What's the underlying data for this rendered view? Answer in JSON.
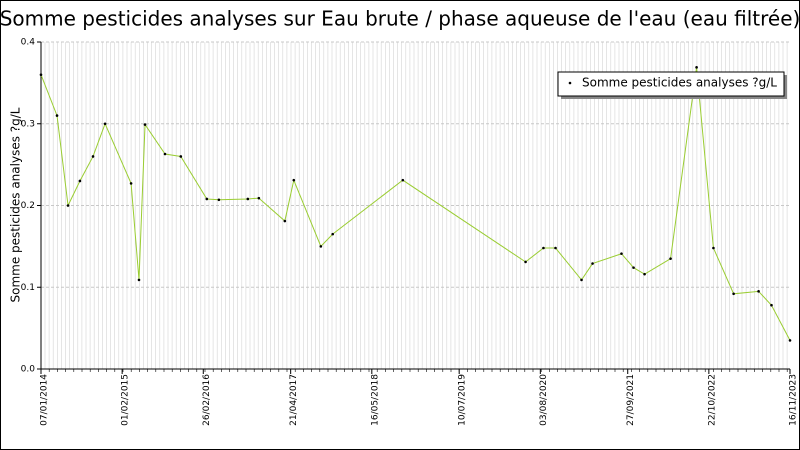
{
  "chart_data": {
    "type": "line",
    "title": "Somme pesticides analyses sur Eau brute / phase aqueuse de l'eau (eau filtrée)",
    "y_label": "Somme pesticides analyses ?g/L",
    "x": [
      "2014-01-07",
      "2014-03-25",
      "2014-05-17",
      "2014-07-13",
      "2014-09-14",
      "2014-11-11",
      "2015-03-16",
      "2015-04-23",
      "2015-05-22",
      "2015-08-26",
      "2015-11-10",
      "2016-03-14",
      "2016-05-11",
      "2016-09-27",
      "2016-11-19",
      "2017-03-24",
      "2017-05-06",
      "2017-09-13",
      "2017-11-09",
      "2018-10-12",
      "2020-05-24",
      "2020-08-18",
      "2020-10-15",
      "2021-02-17",
      "2021-04-11",
      "2021-08-28",
      "2021-10-25",
      "2021-12-17",
      "2022-04-21",
      "2022-08-24",
      "2022-11-13",
      "2023-02-18",
      "2023-06-18",
      "2023-08-19",
      "2023-11-16"
    ],
    "series": [
      {
        "name": "Somme pesticides analyses ?g/L",
        "color": "#9acd32",
        "values": [
          0.36,
          0.31,
          0.2,
          0.23,
          0.26,
          0.3,
          0.227,
          0.109,
          0.299,
          0.263,
          0.26,
          0.208,
          0.207,
          0.208,
          0.209,
          0.181,
          0.231,
          0.15,
          0.165,
          0.231,
          0.131,
          0.148,
          0.148,
          0.109,
          0.129,
          0.141,
          0.124,
          0.116,
          0.135,
          0.369,
          0.148,
          0.092,
          0.095,
          0.078,
          0.035
        ]
      }
    ],
    "xlim": [
      "2014-01-07",
      "2023-11-16"
    ],
    "xticks": [
      {
        "value": "2014-01-07",
        "label": "07/01/2014"
      },
      {
        "value": "2015-02-01",
        "label": "01/02/2015"
      },
      {
        "value": "2016-02-26",
        "label": "26/02/2016"
      },
      {
        "value": "2017-04-21",
        "label": "21/04/2017"
      },
      {
        "value": "2018-05-16",
        "label": "16/05/2018"
      },
      {
        "value": "2019-07-10",
        "label": "10/07/2019"
      },
      {
        "value": "2020-08-03",
        "label": "03/08/2020"
      },
      {
        "value": "2021-09-27",
        "label": "27/09/2021"
      },
      {
        "value": "2022-10-22",
        "label": "22/10/2022"
      },
      {
        "value": "2023-11-16",
        "label": "16/11/2023"
      }
    ],
    "ylim": [
      0,
      0.4
    ],
    "yticks": [
      {
        "value": 0,
        "label": "0.0"
      },
      0.1,
      0.2,
      0.3,
      0.4
    ],
    "grid": true,
    "legend": "upper right"
  }
}
